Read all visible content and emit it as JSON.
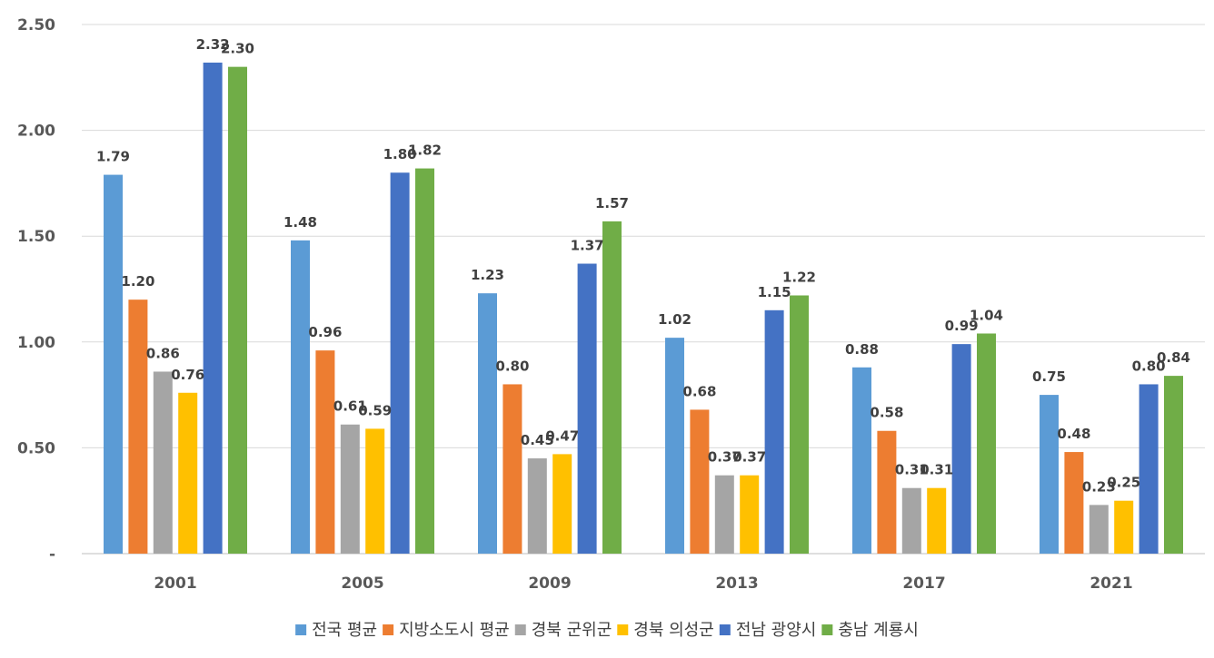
{
  "chart_data": {
    "type": "bar",
    "categories": [
      "2001",
      "2005",
      "2009",
      "2013",
      "2017",
      "2021"
    ],
    "series": [
      {
        "name": "전국 평균",
        "color": "#5B9BD5",
        "values": [
          1.79,
          1.48,
          1.23,
          1.02,
          0.88,
          0.75
        ]
      },
      {
        "name": "지방소도시 평균",
        "color": "#ED7D31",
        "values": [
          1.2,
          0.96,
          0.8,
          0.68,
          0.58,
          0.48
        ]
      },
      {
        "name": "경북 군위군",
        "color": "#A5A5A5",
        "values": [
          0.86,
          0.61,
          0.45,
          0.37,
          0.31,
          0.23
        ]
      },
      {
        "name": "경북 의성군",
        "color": "#FFC000",
        "values": [
          0.76,
          0.59,
          0.47,
          0.37,
          0.31,
          0.25
        ]
      },
      {
        "name": "전남 광양시",
        "color": "#4472C4",
        "values": [
          2.32,
          1.8,
          1.37,
          1.15,
          0.99,
          0.8
        ]
      },
      {
        "name": "충남 계룡시",
        "color": "#70AD47",
        "values": [
          2.3,
          1.82,
          1.57,
          1.22,
          1.04,
          0.84
        ]
      }
    ],
    "data_labels": [
      [
        "1.79",
        "1.48",
        "1.23",
        "1.02",
        "0.88",
        "0.75"
      ],
      [
        "1.20",
        "0.96",
        "0.80",
        "0.68",
        "0.58",
        "0.48"
      ],
      [
        "0.86",
        "0.61",
        "0.45",
        "0.37",
        "0.31",
        "0.23"
      ],
      [
        "0.76",
        "0.59",
        "0.47",
        "0.37",
        "0.31",
        "0.25"
      ],
      [
        "2.32",
        "1.80",
        "1.37",
        "1.15",
        "0.99",
        "0.80"
      ],
      [
        "2.30",
        "1.82",
        "1.57",
        "1.22",
        "1.04",
        "0.84"
      ]
    ],
    "y_ticks": [
      "-",
      "0.50",
      "1.00",
      "1.50",
      "2.00",
      "2.50"
    ],
    "ylim": [
      0,
      2.5
    ],
    "grid": true,
    "legend_position": "bottom",
    "title": "",
    "xlabel": "",
    "ylabel": ""
  }
}
